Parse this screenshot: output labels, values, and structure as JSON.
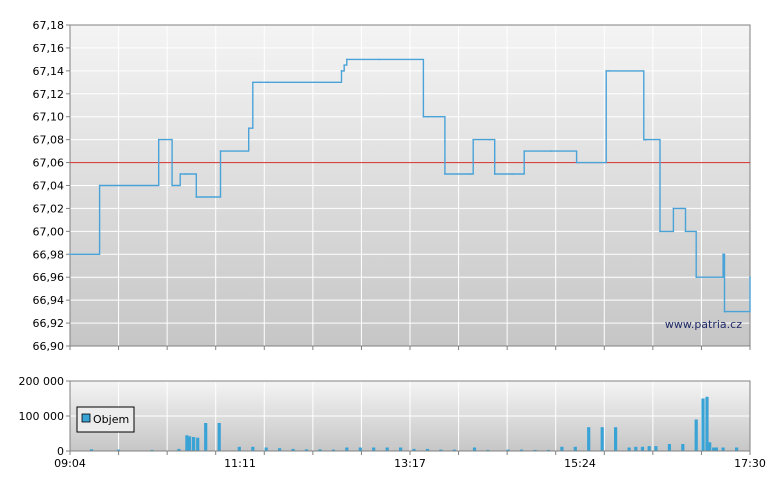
{
  "colors": {
    "price_line": "#4aa3d8",
    "reference_line": "#d02a2a",
    "volume_bar": "#3aa3d6",
    "plot_bg_top": "#f4f4f4",
    "plot_bg_bottom": "#c6c6c6",
    "grid": "#ffffff",
    "axis": "#808080"
  },
  "watermark": "www.patria.cz",
  "chart_data": [
    {
      "type": "line",
      "title": "",
      "xlabel": "",
      "ylabel": "",
      "ylim": [
        66.9,
        67.18
      ],
      "yticks": [
        "66,90",
        "66,92",
        "66,94",
        "66,96",
        "66,98",
        "67,00",
        "67,02",
        "67,04",
        "67,06",
        "67,08",
        "67,10",
        "67,12",
        "67,14",
        "67,16",
        "67,18"
      ],
      "xlim": [
        "09:04",
        "17:30"
      ],
      "grid": true,
      "reference_line": 67.06,
      "series": [
        {
          "style": "step",
          "x": [
            "09:04",
            "09:26",
            "10:10",
            "10:20",
            "10:26",
            "10:30",
            "10:38",
            "10:56",
            "11:17",
            "11:20",
            "11:25",
            "11:31",
            "12:26",
            "12:28",
            "12:30",
            "12:54",
            "13:27",
            "13:30",
            "13:43",
            "14:02",
            "14:04",
            "14:16",
            "14:20",
            "14:33",
            "14:42",
            "15:02",
            "15:21",
            "15:43",
            "15:45",
            "16:11",
            "16:12",
            "16:13",
            "16:23",
            "16:33",
            "16:39",
            "16:42",
            "16:45",
            "16:50",
            "17:10",
            "17:11",
            "17:12",
            "17:30"
          ],
          "y": [
            66.98,
            67.04,
            67.08,
            67.04,
            67.05,
            67.05,
            67.03,
            67.07,
            67.09,
            67.13,
            67.13,
            67.13,
            67.14,
            67.145,
            67.15,
            67.15,
            67.1,
            67.1,
            67.05,
            67.05,
            67.08,
            67.08,
            67.05,
            67.05,
            67.07,
            67.07,
            67.06,
            67.14,
            67.14,
            67.08,
            67.08,
            67.08,
            67.0,
            67.02,
            67.02,
            67.0,
            67.0,
            66.96,
            66.98,
            66.93,
            66.93,
            66.96
          ]
        }
      ]
    },
    {
      "type": "bar",
      "title": "",
      "xlabel": "",
      "ylabel": "",
      "ylim": [
        0,
        200000
      ],
      "yticks": [
        "0",
        "100 000",
        "200 000"
      ],
      "xticks": [
        "09:04",
        "11:11",
        "13:17",
        "15:24",
        "17:30"
      ],
      "grid": true,
      "legend": {
        "position": "top-left",
        "entries": [
          "Objem"
        ]
      },
      "series": [
        {
          "name": "Objem",
          "x": [
            "09:20",
            "09:40",
            "10:05",
            "10:25",
            "10:31",
            "10:33",
            "10:36",
            "10:39",
            "10:45",
            "10:55",
            "11:10",
            "11:20",
            "11:30",
            "11:40",
            "11:50",
            "12:00",
            "12:10",
            "12:20",
            "12:30",
            "12:40",
            "12:50",
            "13:00",
            "13:10",
            "13:20",
            "13:30",
            "13:40",
            "13:50",
            "14:05",
            "14:15",
            "14:30",
            "14:40",
            "14:50",
            "15:00",
            "15:10",
            "15:20",
            "15:30",
            "15:40",
            "15:50",
            "16:00",
            "16:05",
            "16:10",
            "16:15",
            "16:20",
            "16:30",
            "16:40",
            "16:50",
            "16:55",
            "16:58",
            "17:00",
            "17:03",
            "17:05",
            "17:10",
            "17:20"
          ],
          "values": [
            5000,
            4000,
            3000,
            6000,
            45000,
            42000,
            40000,
            38000,
            80000,
            80000,
            12000,
            12000,
            10000,
            8000,
            6000,
            5000,
            5000,
            4000,
            10000,
            10000,
            10000,
            10000,
            10000,
            6000,
            6000,
            4000,
            4000,
            10000,
            3000,
            4000,
            4000,
            3000,
            3000,
            12000,
            12000,
            68000,
            68000,
            68000,
            10000,
            12000,
            12000,
            14000,
            14000,
            20000,
            20000,
            90000,
            150000,
            155000,
            25000,
            10000,
            10000,
            10000,
            10000
          ]
        }
      ]
    }
  ]
}
